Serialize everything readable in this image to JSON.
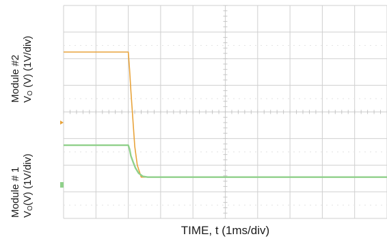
{
  "chart_data": {
    "type": "line",
    "title": "",
    "xlabel": "TIME, t (1ms/div)",
    "ylabel_module2": {
      "line1": "Module #2",
      "line2_prefix": "V",
      "line2_sub": "O",
      "line2_suffix": " (V) (1V/div)"
    },
    "ylabel_module1": {
      "line1": "Module # 1",
      "line2_prefix": "V",
      "line2_sub": "O",
      "line2_suffix": "(V) (1V/div)"
    },
    "x_divisions": 10,
    "y_divisions": 8,
    "grid": true,
    "x_unit": "ms",
    "series": [
      {
        "color": "#e8a33a",
        "x": [
          0,
          2.0,
          2.04,
          2.08,
          2.12,
          2.16,
          2.2,
          2.28,
          2.4,
          10
        ],
        "y": [
          2.25,
          2.25,
          1.6,
          0.8,
          0.1,
          -0.6,
          -1.3,
          -2.0,
          -2.45,
          -2.45
        ]
      },
      {
        "color": "#8fd08a",
        "x": [
          0,
          2.0,
          2.04,
          2.08,
          2.14,
          2.22,
          2.32,
          2.45,
          2.6,
          10
        ],
        "y": [
          -1.25,
          -1.25,
          -1.4,
          -1.65,
          -1.85,
          -2.1,
          -2.3,
          -2.42,
          -2.45,
          -2.45
        ]
      }
    ]
  }
}
